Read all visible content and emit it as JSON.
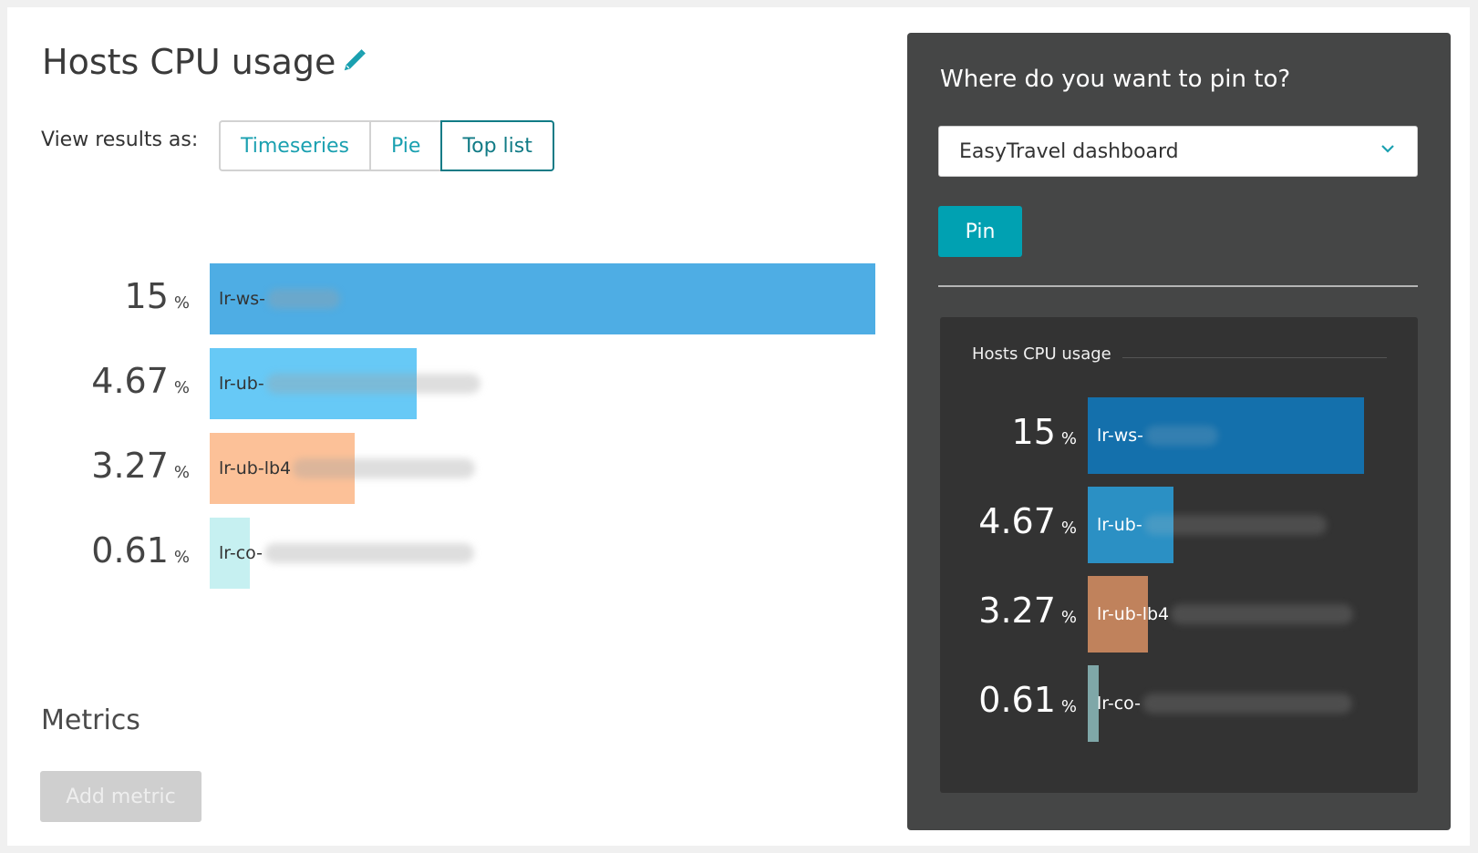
{
  "page": {
    "title": "Hosts CPU usage",
    "view_label": "View results as:",
    "view_options": [
      "Timeseries",
      "Pie",
      "Top list"
    ],
    "selected_view": "Top list",
    "metrics_title": "Metrics",
    "add_metric_label": "Add metric"
  },
  "chart_data": {
    "type": "bar",
    "orientation": "horizontal",
    "unit": "%",
    "max": 15,
    "rows": [
      {
        "value": 15,
        "value_text": "15",
        "label": "lr-ws-",
        "color": "#4eade4"
      },
      {
        "value": 4.67,
        "value_text": "4.67",
        "label": "lr-ub-",
        "color": "#67c9f6"
      },
      {
        "value": 3.27,
        "value_text": "3.27",
        "label": "lr-ub-lb4",
        "color": "#fcc198"
      },
      {
        "value": 0.61,
        "value_text": "0.61",
        "label": "lr-co-",
        "color": "#c6f0f1"
      }
    ]
  },
  "pin_panel": {
    "title": "Where do you want to pin to?",
    "dropdown_value": "EasyTravel dashboard",
    "pin_label": "Pin",
    "preview": {
      "title": "Hosts CPU usage",
      "colors": [
        "#1470ac",
        "#2b90c4",
        "#c0825c",
        "#7fa7a8"
      ]
    }
  },
  "colors": {
    "accent": "#00a1b2",
    "panel_bg": "#454646"
  }
}
